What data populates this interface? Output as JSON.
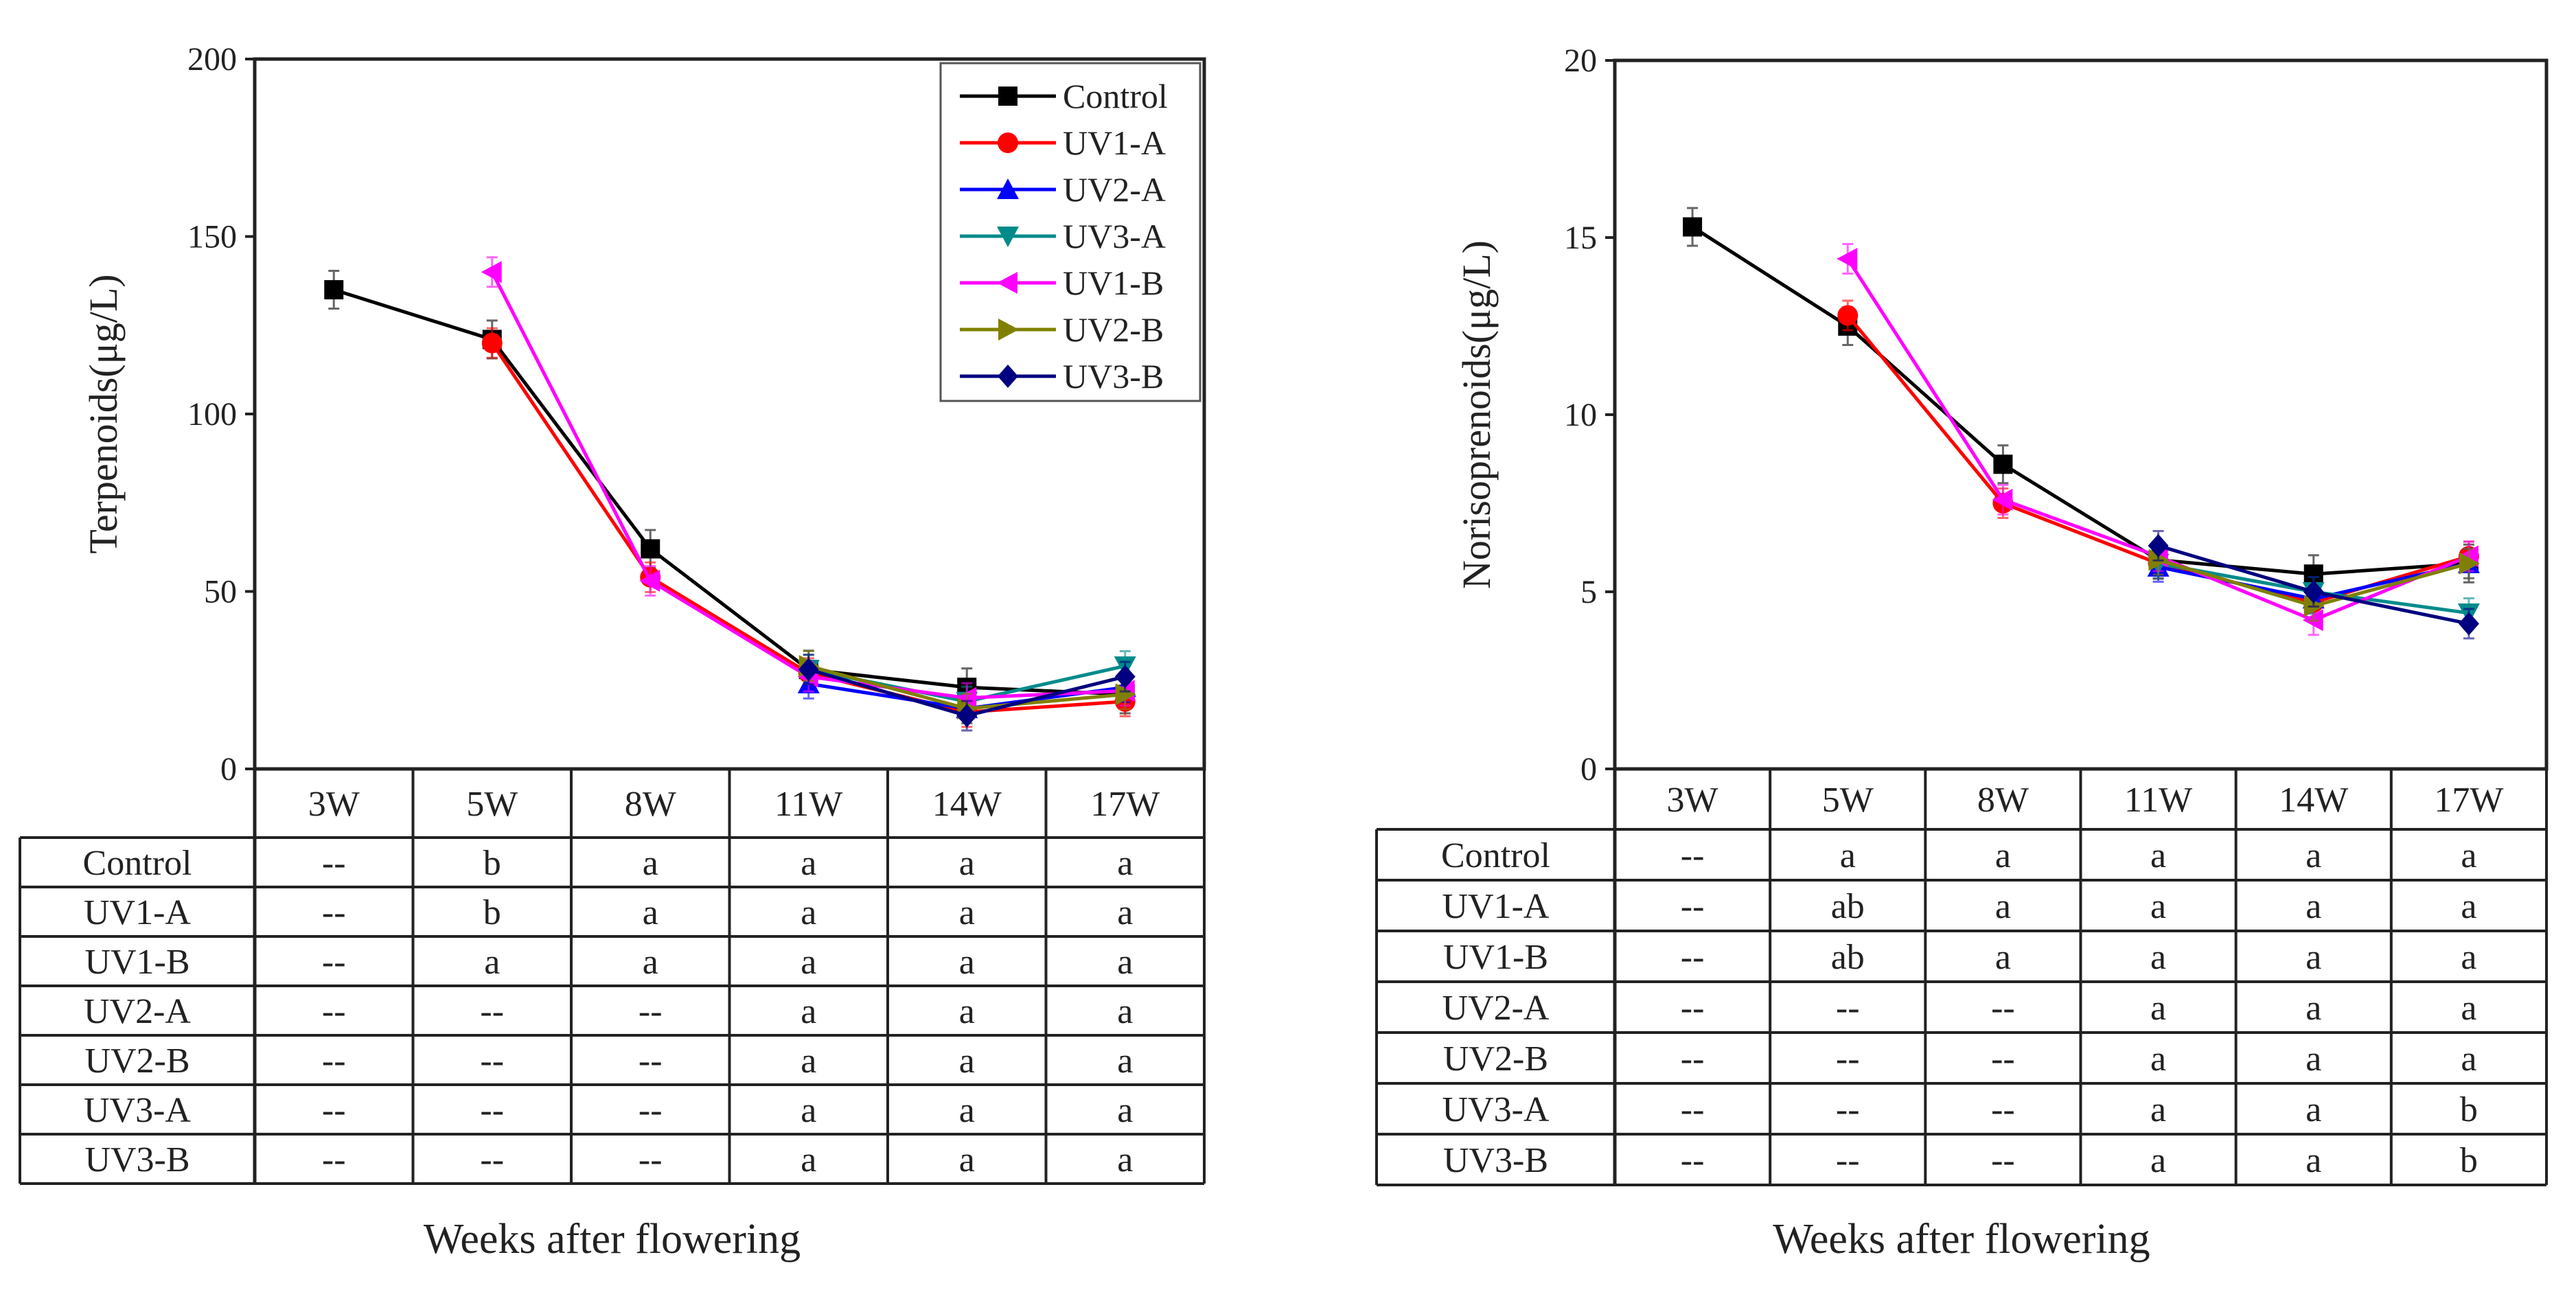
{
  "chart_data": [
    {
      "type": "line",
      "ylabel": "Terpenoids(μg/L)",
      "xlabel": "Weeks after flowering",
      "ylim": [
        0,
        200
      ],
      "yticks": [
        "0",
        "50",
        "100",
        "150",
        "200"
      ],
      "categories": [
        "3W",
        "5W",
        "8W",
        "11W",
        "14W",
        "17W"
      ],
      "legend_position": "top-right",
      "series": [
        {
          "name": "Control",
          "color": "#000000",
          "marker": "square",
          "values": [
            135,
            121,
            62,
            28,
            23,
            21
          ]
        },
        {
          "name": "UV1-A",
          "color": "#ff0000",
          "marker": "circle",
          "values": [
            null,
            120,
            54,
            27,
            16,
            19
          ]
        },
        {
          "name": "UV2-A",
          "color": "#0000ff",
          "marker": "triangle-up",
          "values": [
            null,
            null,
            null,
            24,
            17,
            23
          ]
        },
        {
          "name": "UV3-A",
          "color": "#008b8b",
          "marker": "triangle-down",
          "values": [
            null,
            null,
            null,
            28,
            19,
            29
          ]
        },
        {
          "name": "UV1-B",
          "color": "#ff00ff",
          "marker": "triangle-left",
          "values": [
            null,
            140,
            53,
            26,
            20,
            22
          ]
        },
        {
          "name": "UV2-B",
          "color": "#808000",
          "marker": "triangle-right",
          "values": [
            null,
            null,
            null,
            29,
            17,
            21
          ]
        },
        {
          "name": "UV3-B",
          "color": "#000080",
          "marker": "diamond",
          "values": [
            null,
            null,
            null,
            28,
            15,
            26
          ]
        }
      ],
      "table": {
        "rows": [
          {
            "label": "Control",
            "cells": [
              "--",
              "b",
              "a",
              "a",
              "a",
              "a"
            ]
          },
          {
            "label": "UV1-A",
            "cells": [
              "--",
              "b",
              "a",
              "a",
              "a",
              "a"
            ]
          },
          {
            "label": "UV1-B",
            "cells": [
              "--",
              "a",
              "a",
              "a",
              "a",
              "a"
            ]
          },
          {
            "label": "UV2-A",
            "cells": [
              "--",
              "--",
              "--",
              "a",
              "a",
              "a"
            ]
          },
          {
            "label": "UV2-B",
            "cells": [
              "--",
              "--",
              "--",
              "a",
              "a",
              "a"
            ]
          },
          {
            "label": "UV3-A",
            "cells": [
              "--",
              "--",
              "--",
              "a",
              "a",
              "a"
            ]
          },
          {
            "label": "UV3-B",
            "cells": [
              "--",
              "--",
              "--",
              "a",
              "a",
              "a"
            ]
          }
        ]
      }
    },
    {
      "type": "line",
      "ylabel": "Norisoprenoids(μg/L)",
      "xlabel": "Weeks after flowering",
      "ylim": [
        0,
        20
      ],
      "yticks": [
        "0",
        "5",
        "10",
        "15",
        "20"
      ],
      "categories": [
        "3W",
        "5W",
        "8W",
        "11W",
        "14W",
        "17W"
      ],
      "series": [
        {
          "name": "Control",
          "color": "#000000",
          "marker": "square",
          "values": [
            15.3,
            12.5,
            8.6,
            5.9,
            5.5,
            5.8
          ]
        },
        {
          "name": "UV1-A",
          "color": "#ff0000",
          "marker": "circle",
          "values": [
            null,
            12.8,
            7.5,
            5.8,
            4.7,
            6.0
          ]
        },
        {
          "name": "UV2-A",
          "color": "#0000ff",
          "marker": "triangle-up",
          "values": [
            null,
            null,
            null,
            5.7,
            4.8,
            5.8
          ]
        },
        {
          "name": "UV3-A",
          "color": "#008b8b",
          "marker": "triangle-down",
          "values": [
            null,
            null,
            null,
            5.8,
            5.0,
            4.4
          ]
        },
        {
          "name": "UV1-B",
          "color": "#ff00ff",
          "marker": "triangle-left",
          "values": [
            null,
            14.4,
            7.6,
            6.0,
            4.2,
            6.0
          ]
        },
        {
          "name": "UV2-B",
          "color": "#808000",
          "marker": "triangle-right",
          "values": [
            null,
            null,
            null,
            5.9,
            4.6,
            5.8
          ]
        },
        {
          "name": "UV3-B",
          "color": "#000080",
          "marker": "diamond",
          "values": [
            null,
            null,
            null,
            6.3,
            5.0,
            4.1
          ]
        }
      ],
      "table": {
        "rows": [
          {
            "label": "Control",
            "cells": [
              "--",
              "a",
              "a",
              "a",
              "a",
              "a"
            ]
          },
          {
            "label": "UV1-A",
            "cells": [
              "--",
              "ab",
              "a",
              "a",
              "a",
              "a"
            ]
          },
          {
            "label": "UV1-B",
            "cells": [
              "--",
              "ab",
              "a",
              "a",
              "a",
              "a"
            ]
          },
          {
            "label": "UV2-A",
            "cells": [
              "--",
              "--",
              "--",
              "a",
              "a",
              "a"
            ]
          },
          {
            "label": "UV2-B",
            "cells": [
              "--",
              "--",
              "--",
              "a",
              "a",
              "a"
            ]
          },
          {
            "label": "UV3-A",
            "cells": [
              "--",
              "--",
              "--",
              "a",
              "a",
              "b"
            ]
          },
          {
            "label": "UV3-B",
            "cells": [
              "--",
              "--",
              "--",
              "a",
              "a",
              "b"
            ]
          }
        ]
      }
    }
  ]
}
